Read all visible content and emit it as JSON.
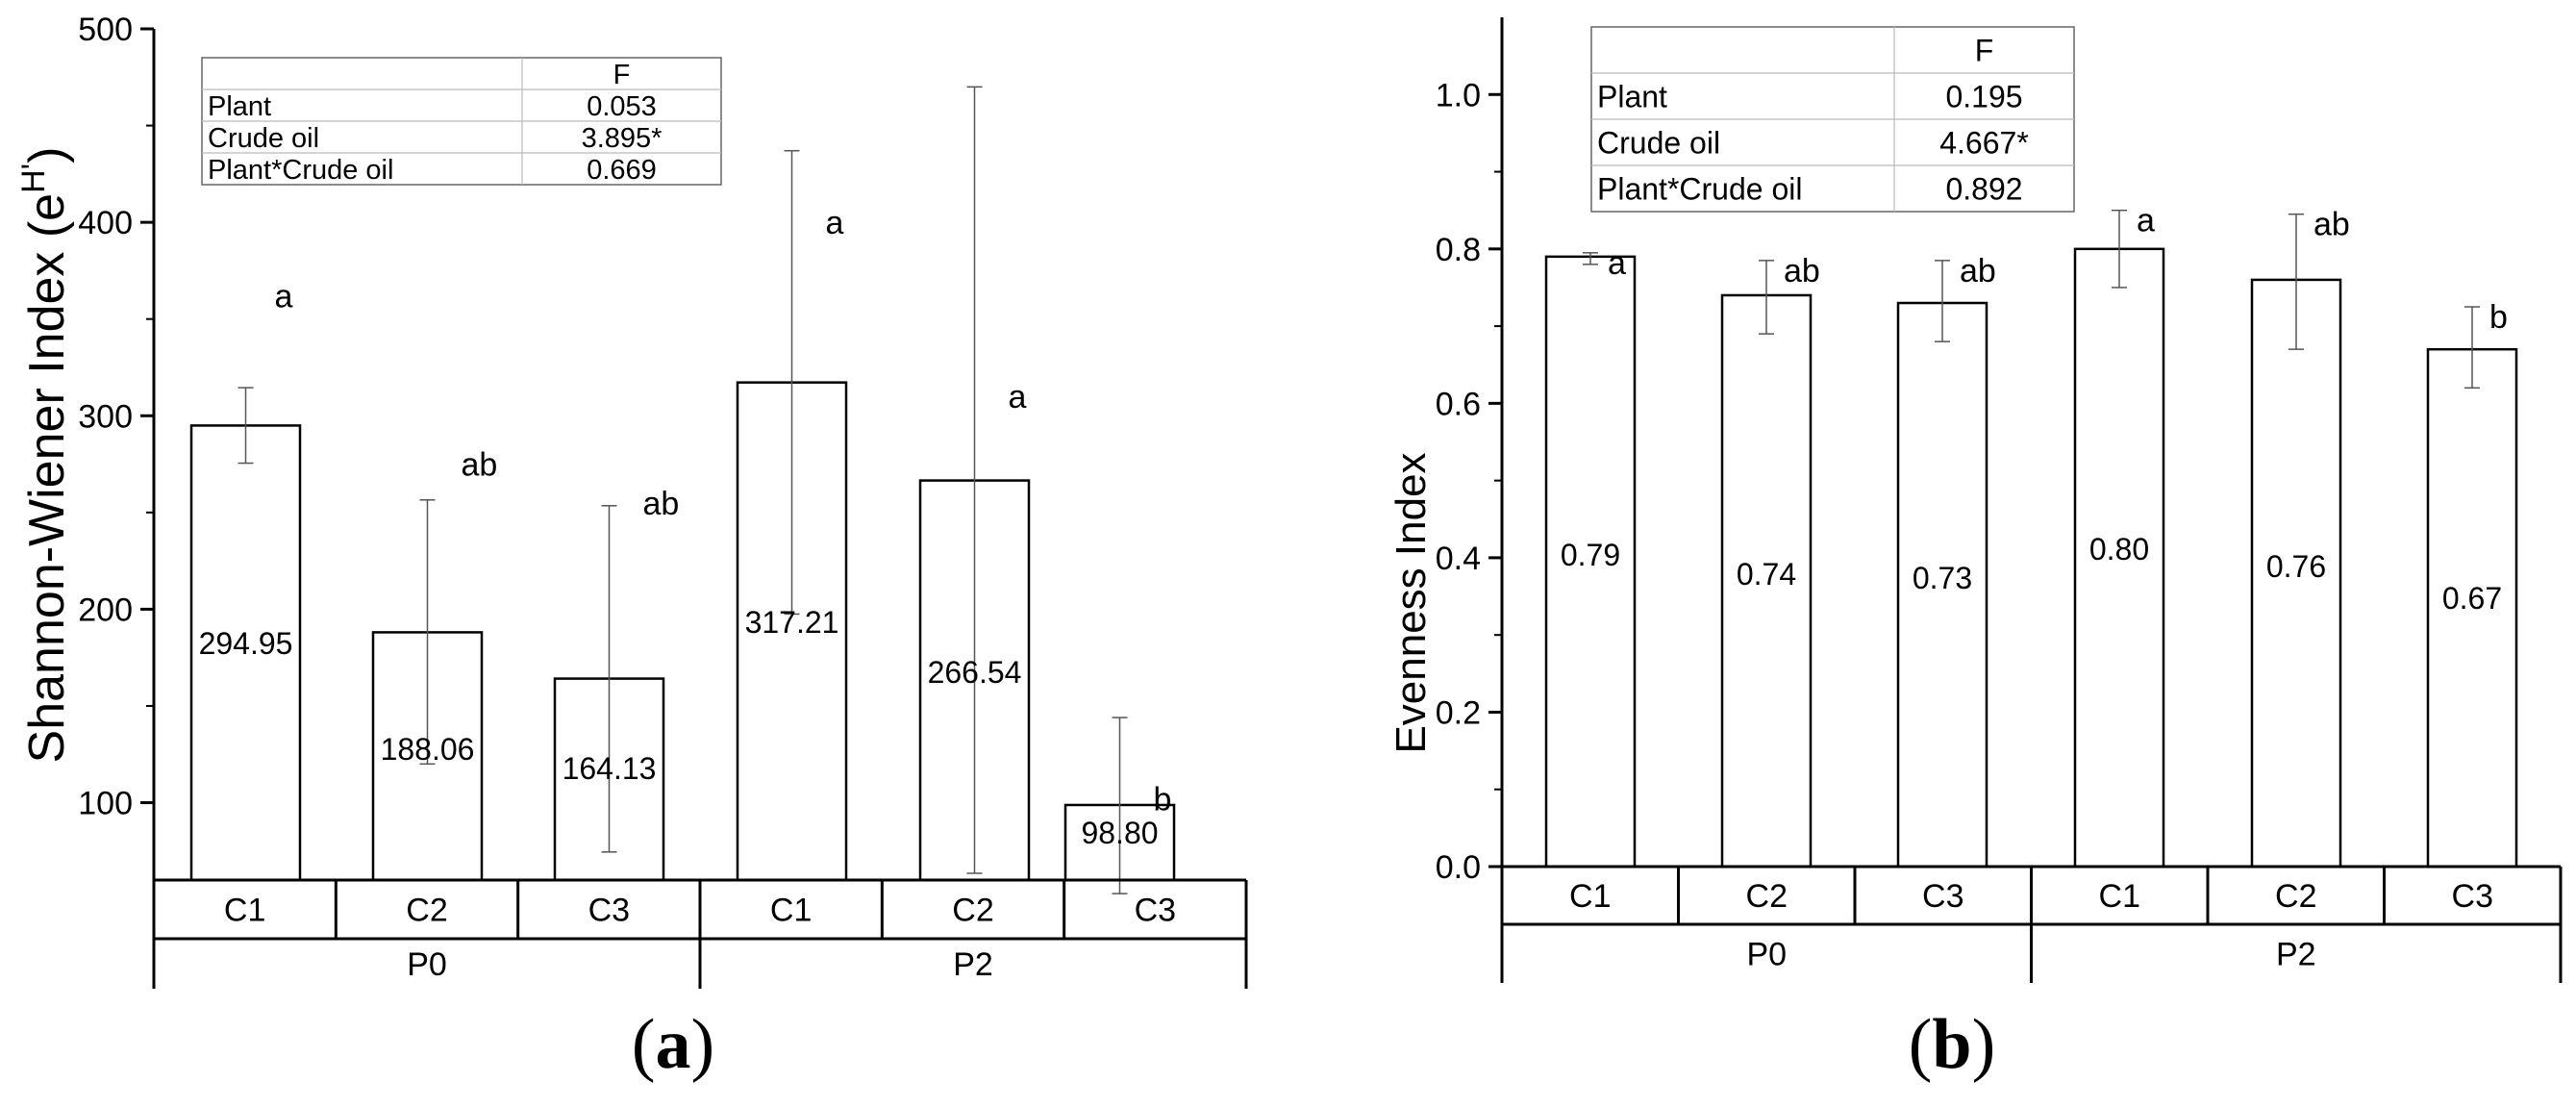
{
  "chart_data": [
    {
      "type": "bar",
      "panel_label": "a",
      "ylabel": "Shannon-Wiener Index (e",
      "ylabel_sup": "H'",
      "ylabel_close": ")",
      "ylim": [
        60,
        500
      ],
      "yticks": [
        100,
        200,
        300,
        400,
        500
      ],
      "categories": [
        "C1",
        "C2",
        "C3",
        "C1",
        "C2",
        "C3"
      ],
      "groups": [
        {
          "label": "P0",
          "span": [
            0,
            2
          ]
        },
        {
          "label": "P2",
          "span": [
            3,
            5
          ]
        }
      ],
      "values": [
        294.95,
        188.06,
        164.13,
        317.21,
        266.54,
        98.8
      ],
      "value_labels": [
        "294.95",
        "188.06",
        "164.13",
        "317.21",
        "266.54",
        "98.80"
      ],
      "error_low": [
        275.5,
        120.0,
        74.5,
        197.5,
        63.5,
        53.0
      ],
      "error_high": [
        314.5,
        256.5,
        253.5,
        437.0,
        470.0,
        144.0
      ],
      "letters": [
        "a",
        "ab",
        "ab",
        "a",
        "a",
        "b"
      ],
      "letter_y": [
        362,
        275,
        255,
        400,
        310,
        102
      ],
      "anova": {
        "header": "F",
        "rows": [
          {
            "factor": "Plant",
            "f": "0.053"
          },
          {
            "factor": "Crude oil",
            "f": "3.895*"
          },
          {
            "factor": "Plant*Crude oil",
            "f": "0.669"
          }
        ]
      }
    },
    {
      "type": "bar",
      "panel_label": "b",
      "ylabel": "Evenness Index",
      "ylim": [
        0.0,
        1.1
      ],
      "yticks": [
        0.0,
        0.2,
        0.4,
        0.6,
        0.8,
        1.0
      ],
      "ytick_labels": [
        "0.0",
        "0.2",
        "0.4",
        "0.6",
        "0.8",
        "1.0"
      ],
      "categories": [
        "C1",
        "C2",
        "C3",
        "C1",
        "C2",
        "C3"
      ],
      "groups": [
        {
          "label": "P0",
          "span": [
            0,
            2
          ]
        },
        {
          "label": "P2",
          "span": [
            3,
            5
          ]
        }
      ],
      "values": [
        0.79,
        0.74,
        0.73,
        0.8,
        0.76,
        0.67
      ],
      "value_labels": [
        "0.79",
        "0.74",
        "0.73",
        "0.80",
        "0.76",
        "0.67"
      ],
      "error_low": [
        0.78,
        0.69,
        0.68,
        0.75,
        0.67,
        0.62
      ],
      "error_high": [
        0.795,
        0.785,
        0.785,
        0.85,
        0.845,
        0.725
      ],
      "letters": [
        "a",
        "ab",
        "ab",
        "a",
        "ab",
        "b"
      ],
      "anova": {
        "header": "F",
        "rows": [
          {
            "factor": "Plant",
            "f": "0.195"
          },
          {
            "factor": "Crude oil",
            "f": "4.667*"
          },
          {
            "factor": "Plant*Crude oil",
            "f": "0.892"
          }
        ]
      }
    }
  ]
}
